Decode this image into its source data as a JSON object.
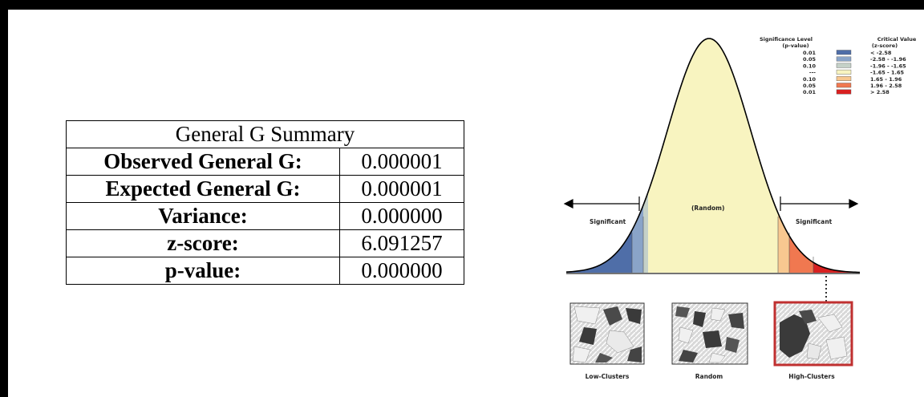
{
  "summary": {
    "title": "General G Summary",
    "rows": [
      {
        "label": "Observed General G:",
        "value": "0.000001"
      },
      {
        "label": "Expected General G:",
        "value": "0.000001"
      },
      {
        "label": "Variance:",
        "value": "0.000000"
      },
      {
        "label": "z-score:",
        "value": "6.091257"
      },
      {
        "label": "p-value:",
        "value": "0.000000"
      }
    ]
  },
  "legend": {
    "sig_header": "Significance Level",
    "sig_sub": "(p-value)",
    "crit_header": "Critical Value",
    "crit_sub": "(z-score)",
    "rows": [
      {
        "p": "0.01",
        "z": "< -2.58",
        "color": "#4f6ea8"
      },
      {
        "p": "0.05",
        "z": "-2.58 - -1.96",
        "color": "#8aa4c8"
      },
      {
        "p": "0.10",
        "z": "-1.96 - -1.65",
        "color": "#c5d1c8"
      },
      {
        "p": "---",
        "z": "-1.65 - 1.65",
        "color": "#f8f4c0"
      },
      {
        "p": "0.10",
        "z": "1.65 - 1.96",
        "color": "#f8c890"
      },
      {
        "p": "0.05",
        "z": "1.96 - 2.58",
        "color": "#f07850"
      },
      {
        "p": "0.01",
        "z": "> 2.58",
        "color": "#d82020"
      }
    ]
  },
  "curve": {
    "left_label": "Significant",
    "center_label": "(Random)",
    "right_label": "Significant"
  },
  "maps": {
    "low": "Low-Clusters",
    "random": "Random",
    "high": "High-Clusters"
  }
}
